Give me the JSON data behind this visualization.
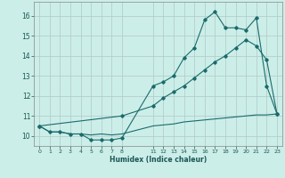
{
  "xlabel": "Humidex (Indice chaleur)",
  "bg_color": "#cceee8",
  "line_color": "#1a6b6b",
  "grid_color": "#b0c8c8",
  "xlim": [
    -0.5,
    23.5
  ],
  "ylim": [
    9.5,
    16.7
  ],
  "xticks": [
    0,
    1,
    2,
    3,
    4,
    5,
    6,
    7,
    8,
    11,
    12,
    13,
    14,
    15,
    16,
    17,
    18,
    19,
    20,
    21,
    22,
    23
  ],
  "yticks": [
    10,
    11,
    12,
    13,
    14,
    15,
    16
  ],
  "line1_x": [
    0,
    1,
    2,
    3,
    4,
    5,
    6,
    7,
    8,
    11,
    12,
    13,
    14,
    15,
    16,
    17,
    18,
    19,
    20,
    21,
    22,
    23
  ],
  "line1_y": [
    10.5,
    10.2,
    10.2,
    10.1,
    10.1,
    9.8,
    9.8,
    9.8,
    9.9,
    12.5,
    12.7,
    13.0,
    13.9,
    14.4,
    15.8,
    16.2,
    15.4,
    15.4,
    15.3,
    15.9,
    12.5,
    11.1
  ],
  "line2_x": [
    0,
    1,
    2,
    3,
    4,
    5,
    6,
    7,
    8,
    11,
    12,
    13,
    14,
    15,
    16,
    17,
    18,
    19,
    20,
    21,
    22,
    23
  ],
  "line2_y": [
    10.5,
    10.2,
    10.2,
    10.1,
    10.1,
    10.05,
    10.1,
    10.05,
    10.1,
    10.5,
    10.55,
    10.6,
    10.7,
    10.75,
    10.8,
    10.85,
    10.9,
    10.95,
    11.0,
    11.05,
    11.05,
    11.1
  ],
  "line3_x": [
    0,
    8,
    11,
    12,
    13,
    14,
    15,
    16,
    17,
    18,
    19,
    20,
    21,
    22,
    23
  ],
  "line3_y": [
    10.5,
    11.0,
    11.5,
    11.9,
    12.2,
    12.5,
    12.9,
    13.3,
    13.7,
    14.0,
    14.4,
    14.8,
    14.5,
    13.8,
    11.1
  ]
}
